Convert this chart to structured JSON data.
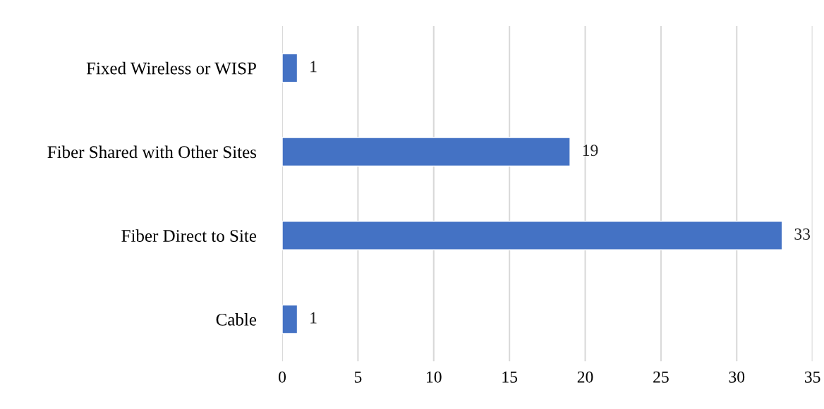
{
  "chart_data": {
    "type": "bar",
    "orientation": "horizontal",
    "categories": [
      "Fixed Wireless or WISP",
      "Fiber Shared with Other Sites",
      "Fiber Direct to Site",
      "Cable"
    ],
    "values": [
      1,
      19,
      33,
      1
    ],
    "color": "#4472c4",
    "xlim": [
      0,
      35
    ],
    "xticks": [
      0,
      5,
      10,
      15,
      20,
      25,
      30,
      35
    ],
    "grid": "x",
    "data_labels": true
  }
}
